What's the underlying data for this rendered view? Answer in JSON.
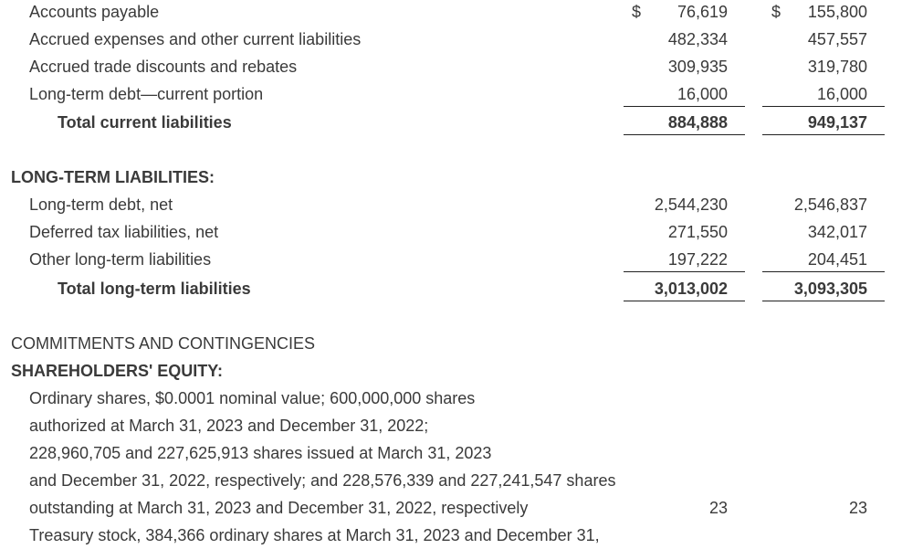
{
  "current": {
    "rows": [
      {
        "label": "Accounts payable",
        "currency": "$",
        "v2023": "76,619",
        "v2022": "155,800"
      },
      {
        "label": "Accrued expenses and other current liabilities",
        "v2023": "482,334",
        "v2022": "457,557"
      },
      {
        "label": "Accrued trade discounts and rebates",
        "v2023": "309,935",
        "v2022": "319,780"
      },
      {
        "label": "Long-term debt—current portion",
        "v2023": "16,000",
        "v2022": "16,000"
      }
    ],
    "total": {
      "label": "Total current liabilities",
      "v2023": "884,888",
      "v2022": "949,137"
    }
  },
  "long_term": {
    "header": "LONG-TERM LIABILITIES:",
    "rows": [
      {
        "label": "Long-term debt, net",
        "v2023": "2,544,230",
        "v2022": "2,546,837"
      },
      {
        "label": "Deferred tax liabilities, net",
        "v2023": "271,550",
        "v2022": "342,017"
      },
      {
        "label": "Other long-term liabilities",
        "v2023": "197,222",
        "v2022": "204,451"
      }
    ],
    "total": {
      "label": "Total long-term liabilities",
      "v2023": "3,013,002",
      "v2022": "3,093,305"
    }
  },
  "commitments": {
    "label": "COMMITMENTS AND CONTINGENCIES"
  },
  "equity": {
    "header": "SHAREHOLDERS' EQUITY:",
    "ordinary_lines": [
      "Ordinary shares, $0.0001 nominal value; 600,000,000 shares",
      "authorized at March 31, 2023 and December 31, 2022;",
      "228,960,705 and 227,625,913 shares issued at March 31, 2023",
      "and December 31, 2022, respectively; and 228,576,339 and 227,241,547 shares",
      "outstanding at March 31, 2023 and December 31, 2022, respectively"
    ],
    "ordinary_v2023": "23",
    "ordinary_v2022": "23",
    "treasury_label": "Treasury stock, 384,366 ordinary shares at March 31, 2023 and December 31,"
  }
}
